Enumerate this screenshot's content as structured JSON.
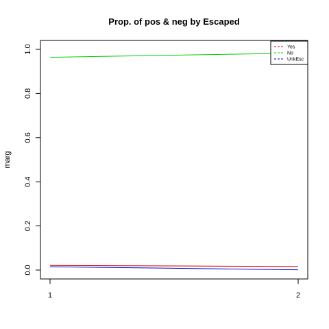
{
  "chart_data": {
    "type": "line",
    "title": "Prop. of pos & neg by Escaped",
    "xlabel": "",
    "ylabel": "marg",
    "x": [
      1,
      2
    ],
    "x_ticks": [
      "1",
      "2"
    ],
    "xlim": [
      1,
      2
    ],
    "ylim": [
      0,
      1
    ],
    "y_ticks": [
      "0.0",
      "0.2",
      "0.4",
      "0.6",
      "0.8",
      "1.0"
    ],
    "grid": false,
    "legend_position": "top-right",
    "series": [
      {
        "name": "Yes",
        "color": "#cc0000",
        "values": [
          0.021,
          0.016
        ]
      },
      {
        "name": "No",
        "color": "#00cc00",
        "values": [
          0.964,
          0.983
        ]
      },
      {
        "name": "UnkEsc",
        "color": "#0000cc",
        "values": [
          0.015,
          0.001
        ]
      }
    ]
  }
}
